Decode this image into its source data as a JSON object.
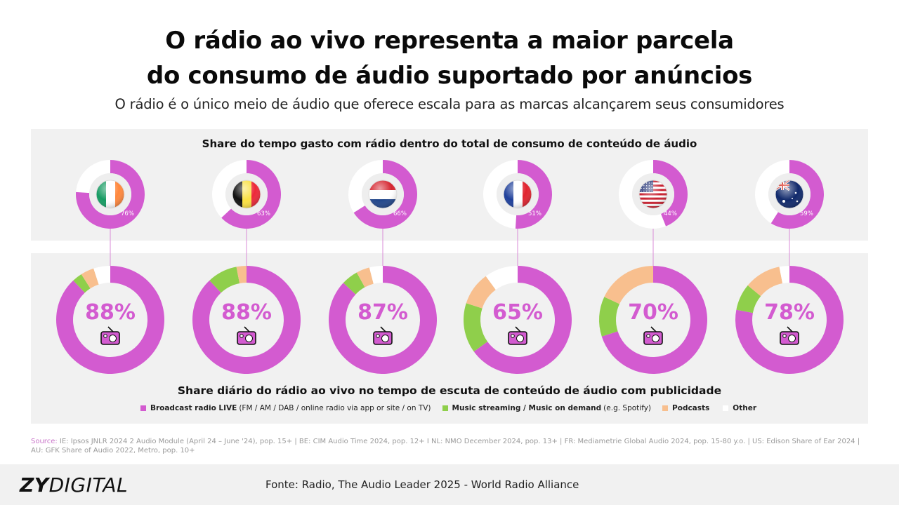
{
  "header": {
    "title_line1": "O rádio ao vivo representa a maior parcela",
    "title_line2": "do consumo de áudio suportado por anúncios",
    "subtitle": "O rádio é o único meio de áudio que oferece escala para as marcas alcançarem seus consumidores"
  },
  "colors": {
    "radio": "#d35bd0",
    "music": "#8fcf4b",
    "podcasts": "#f8bf8e",
    "other": "#ffffff",
    "panel": "#f1f1f1"
  },
  "chart_data": [
    {
      "type": "pie",
      "title": "Share do tempo gasto com rádio dentro do total de consumo de conteúdo de áudio",
      "categories": [
        "IE",
        "BE",
        "NL",
        "FR",
        "US",
        "AU"
      ],
      "flags": [
        "ireland-flag-icon",
        "belgium-flag-icon",
        "netherlands-flag-icon",
        "france-flag-icon",
        "usa-flag-icon",
        "australia-flag-icon"
      ],
      "values": [
        76,
        63,
        66,
        51,
        44,
        59
      ],
      "labels": [
        "76%",
        "63%",
        "66%",
        "51%",
        "44%",
        "59%"
      ],
      "unit": "%"
    },
    {
      "type": "pie",
      "title": "Share diário do rádio ao vivo no tempo de escuta de conteúdo de áudio com publicidade",
      "categories": [
        "IE",
        "BE",
        "NL",
        "FR",
        "US",
        "AU"
      ],
      "labels": [
        "88%",
        "88%",
        "87%",
        "65%",
        "70%",
        "78%"
      ],
      "series": [
        {
          "name": "Broadcast radio LIVE",
          "values": [
            88,
            88,
            87,
            65,
            70,
            78
          ]
        },
        {
          "name": "Music streaming / Music on demand",
          "values": [
            3,
            9,
            5,
            15,
            12,
            8
          ]
        },
        {
          "name": "Podcasts",
          "values": [
            4,
            3,
            4,
            10,
            18,
            11
          ]
        },
        {
          "name": "Other",
          "values": [
            5,
            0,
            4,
            10,
            0,
            3
          ]
        }
      ],
      "unit": "%"
    }
  ],
  "legend": [
    {
      "bold": "Broadcast radio LIVE",
      "detail": "(FM / AM / DAB / online radio via app or site / on TV)"
    },
    {
      "bold": "Music streaming / Music on demand",
      "detail": "(e.g. Spotify)"
    },
    {
      "bold": "Podcasts",
      "detail": ""
    },
    {
      "bold": "Other",
      "detail": ""
    }
  ],
  "source": {
    "label": "Source:",
    "text": " IE: Ipsos JNLR 2024 2 Audio Module (April 24 – June '24), pop. 15+ | BE: CIM Audio Time 2024, pop. 12+ I NL: NMO December 2024, pop. 13+ | FR: Mediametrie Global Audio 2024, pop. 15-80 y.o. |  US: Edison Share of Ear 2024 | AU: GFK Share of Audio 2022, Metro, pop. 10+"
  },
  "footer": {
    "logo_bold": "ZY",
    "logo_light": "DIGITAL",
    "fonte": "Fonte: Radio, The Audio Leader 2025 - World Radio Alliance"
  }
}
